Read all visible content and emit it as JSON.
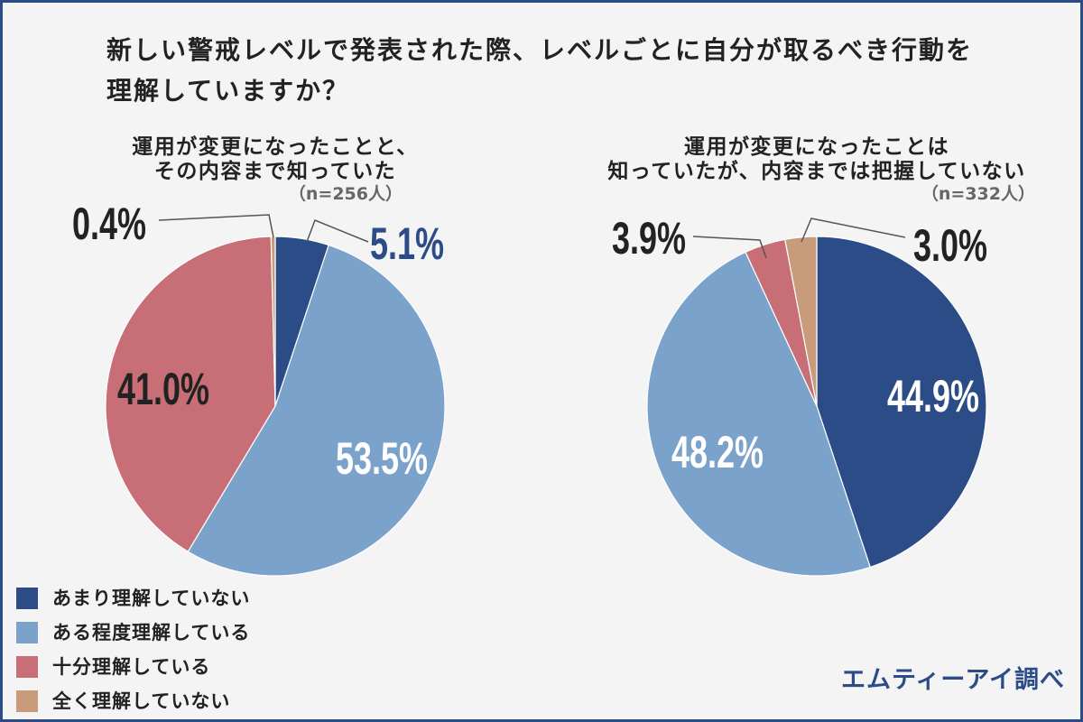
{
  "chart_data": {
    "type": "pie",
    "title": [
      "新しい警戒レベルで発表された際、レベルごとに自分が取るべき行動を",
      "理解していますか？"
    ],
    "categories": [
      "あまり理解していない",
      "ある程度理解している",
      "十分理解している",
      "全く理解していない"
    ],
    "colors": [
      "#2c4c87",
      "#7aa2cb",
      "#c86e77",
      "#c89b7a"
    ],
    "legend": "bottom-left",
    "unit": "%",
    "pies": [
      {
        "name": [
          "運用が変更になったことと、",
          "その内容まで知っていた"
        ],
        "sample": "（n=256人）",
        "values": [
          5.1,
          53.5,
          41.0,
          0.4
        ]
      },
      {
        "name": [
          "運用が変更になったことは",
          "知っていたが、内容までは把握していない"
        ],
        "sample": "（n=332人）",
        "values": [
          44.9,
          48.2,
          3.9,
          3.0
        ]
      }
    ]
  },
  "source": "エムティーアイ調べ"
}
